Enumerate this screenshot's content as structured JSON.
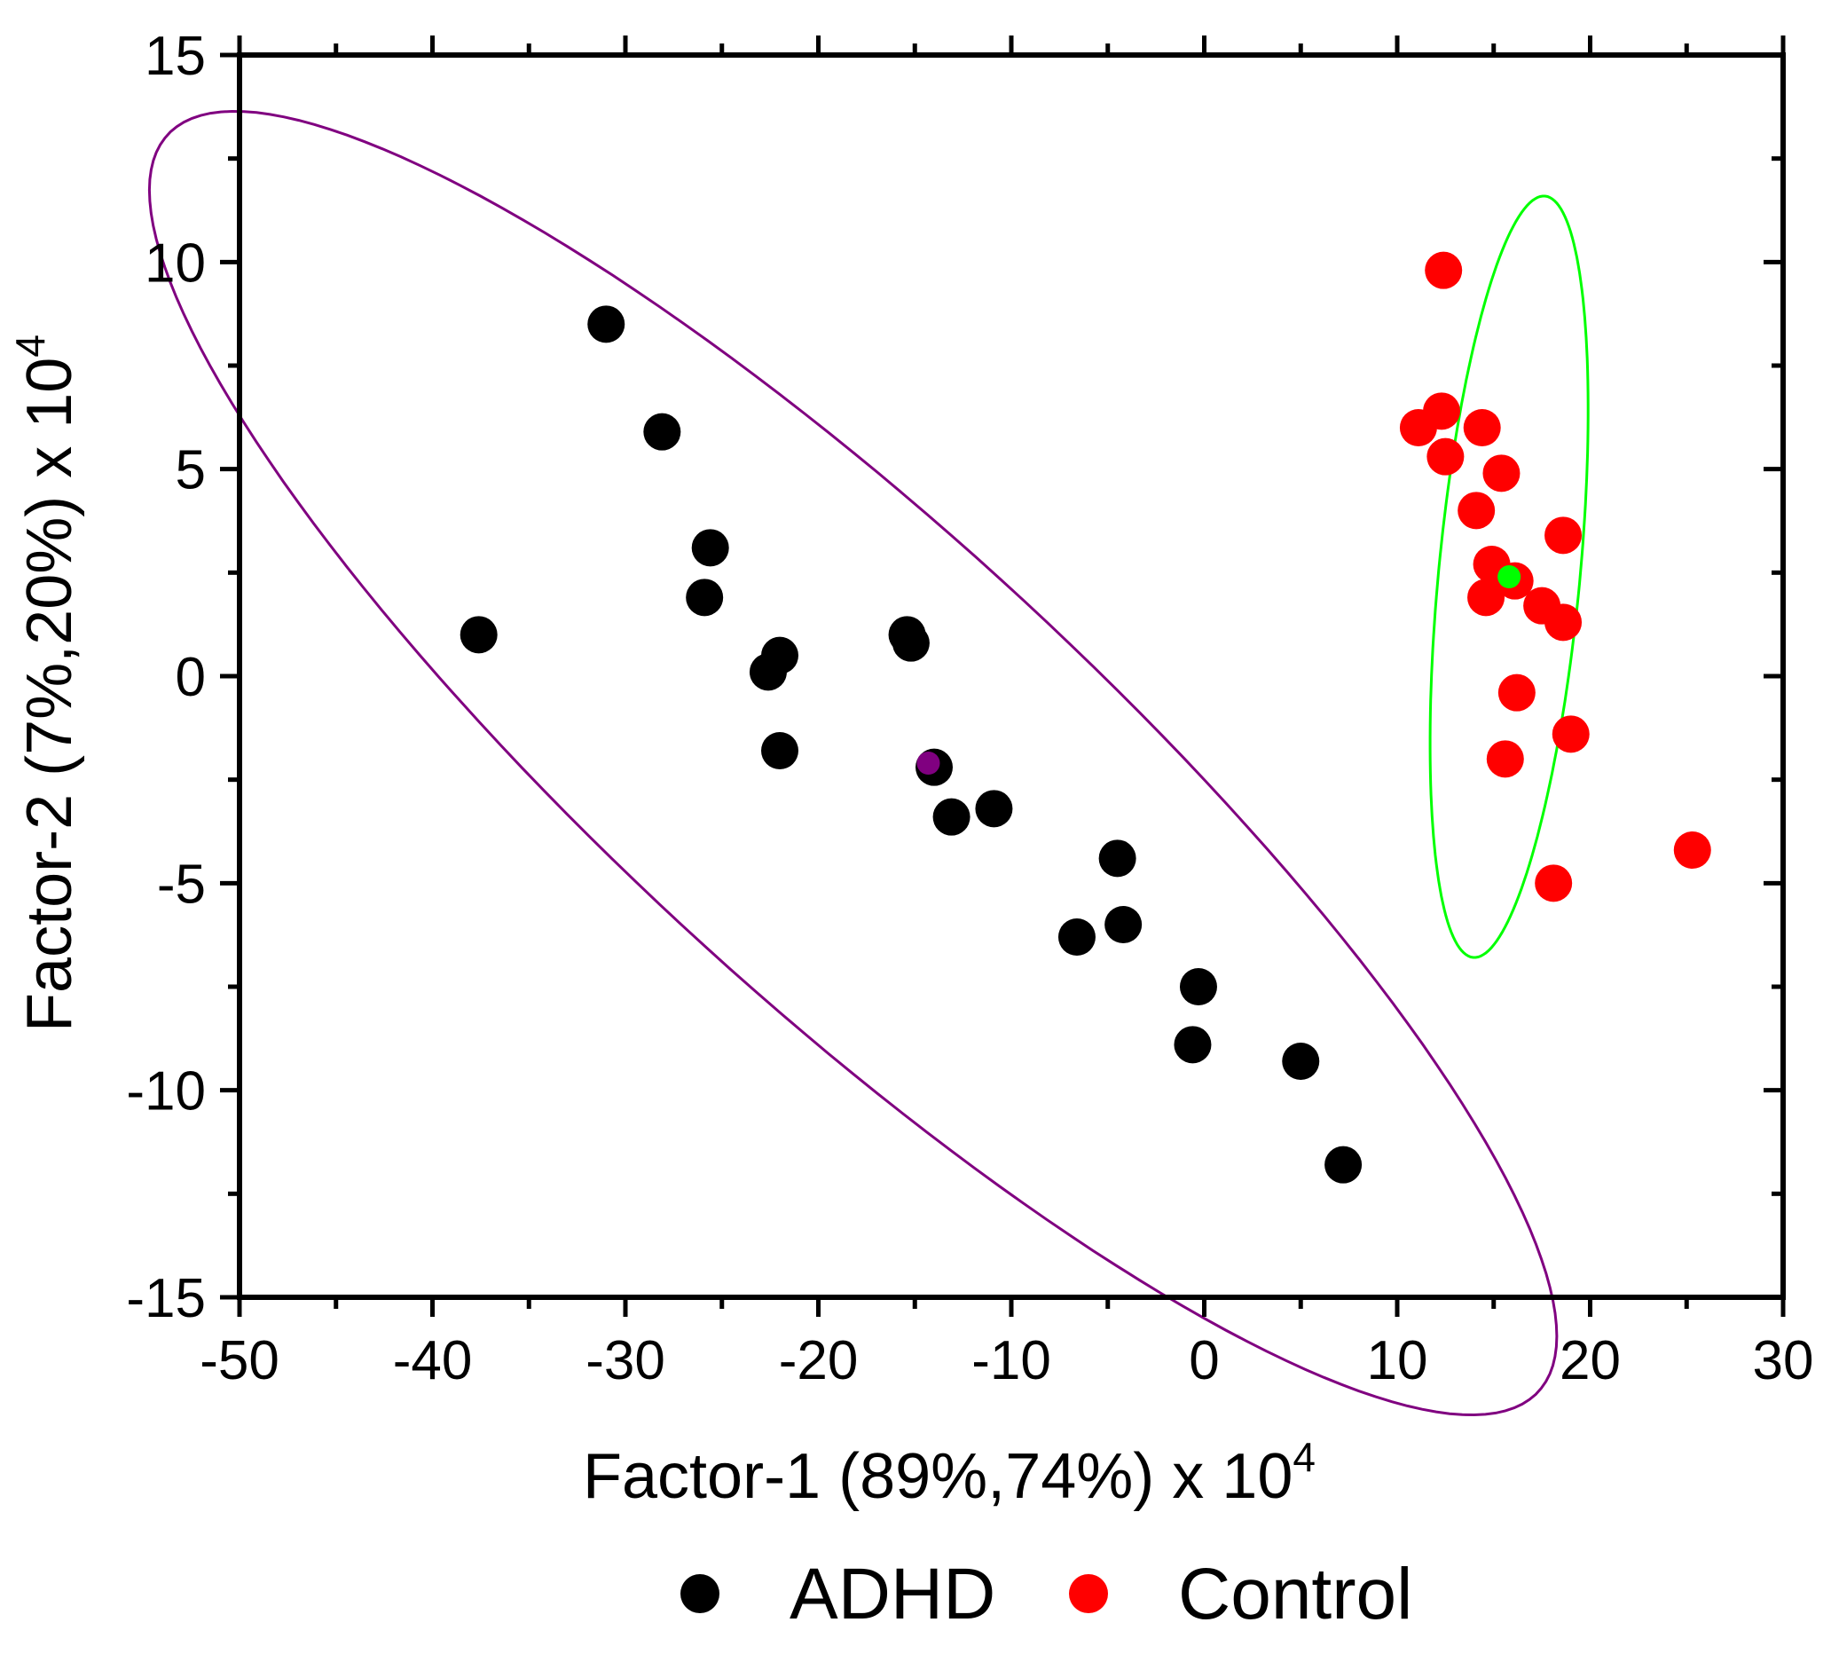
{
  "chart_data": {
    "type": "scatter",
    "title": "",
    "xlabel": "Factor-1 (89%,74%) x 10",
    "xlabel_exponent": "4",
    "ylabel": "Factor-2 (7%,20%) x 10",
    "ylabel_exponent": "4",
    "xlim": [
      -50,
      30
    ],
    "ylim": [
      -15,
      15
    ],
    "xticks": [
      -50,
      -40,
      -30,
      -20,
      -10,
      0,
      10,
      20,
      30
    ],
    "yticks": [
      -15,
      -10,
      -5,
      0,
      5,
      10,
      15
    ],
    "xtick_labels": [
      "-50",
      "-40",
      "-30",
      "-20",
      "-10",
      "0",
      "10",
      "20",
      "30"
    ],
    "ytick_labels": [
      "-15",
      "-10",
      "-5",
      "0",
      "5",
      "10",
      "15"
    ],
    "legend_position": "bottom",
    "series": [
      {
        "name": "ADHD",
        "color": "#000000",
        "points": [
          [
            -37.6,
            1.0
          ],
          [
            -31.0,
            8.5
          ],
          [
            -28.1,
            5.9
          ],
          [
            -25.6,
            3.1
          ],
          [
            -25.9,
            1.9
          ],
          [
            -22.0,
            0.5
          ],
          [
            -22.6,
            0.1
          ],
          [
            -22.0,
            -1.8
          ],
          [
            -15.4,
            1.0
          ],
          [
            -15.2,
            0.8
          ],
          [
            -14.0,
            -2.2
          ],
          [
            -13.1,
            -3.4
          ],
          [
            -10.9,
            -3.2
          ],
          [
            -4.5,
            -4.4
          ],
          [
            -4.2,
            -6.0
          ],
          [
            -6.6,
            -6.3
          ],
          [
            -0.3,
            -7.5
          ],
          [
            -0.6,
            -8.9
          ],
          [
            5.0,
            -9.3
          ],
          [
            7.2,
            -11.8
          ]
        ]
      },
      {
        "name": "Control",
        "color": "#ff0000",
        "points": [
          [
            12.4,
            9.8
          ],
          [
            12.3,
            6.4
          ],
          [
            11.1,
            6.0
          ],
          [
            14.4,
            6.0
          ],
          [
            12.5,
            5.3
          ],
          [
            15.4,
            4.9
          ],
          [
            14.1,
            4.0
          ],
          [
            18.6,
            3.4
          ],
          [
            14.9,
            2.7
          ],
          [
            16.1,
            2.3
          ],
          [
            14.6,
            1.9
          ],
          [
            17.5,
            1.7
          ],
          [
            18.6,
            1.3
          ],
          [
            16.2,
            -0.4
          ],
          [
            19.0,
            -1.4
          ],
          [
            15.6,
            -2.0
          ],
          [
            25.3,
            -4.2
          ],
          [
            18.1,
            -5.0
          ]
        ]
      }
    ],
    "centroids": [
      {
        "group": "ADHD",
        "color": "#800080",
        "x": -14.3,
        "y": -2.1
      },
      {
        "group": "Control",
        "color": "#00ff00",
        "x": 15.8,
        "y": 2.4
      }
    ],
    "ellipses": [
      {
        "group": "ADHD",
        "color": "#800080",
        "cx": -18.2,
        "cy": -2.1,
        "a": 39.1,
        "b": 7.0,
        "angle_deg": -21.5
      },
      {
        "group": "Control",
        "color": "#00ff00",
        "cx": 15.8,
        "cy": 2.4,
        "a": 9.4,
        "b": 3.6,
        "angle_deg": 77
      }
    ]
  }
}
